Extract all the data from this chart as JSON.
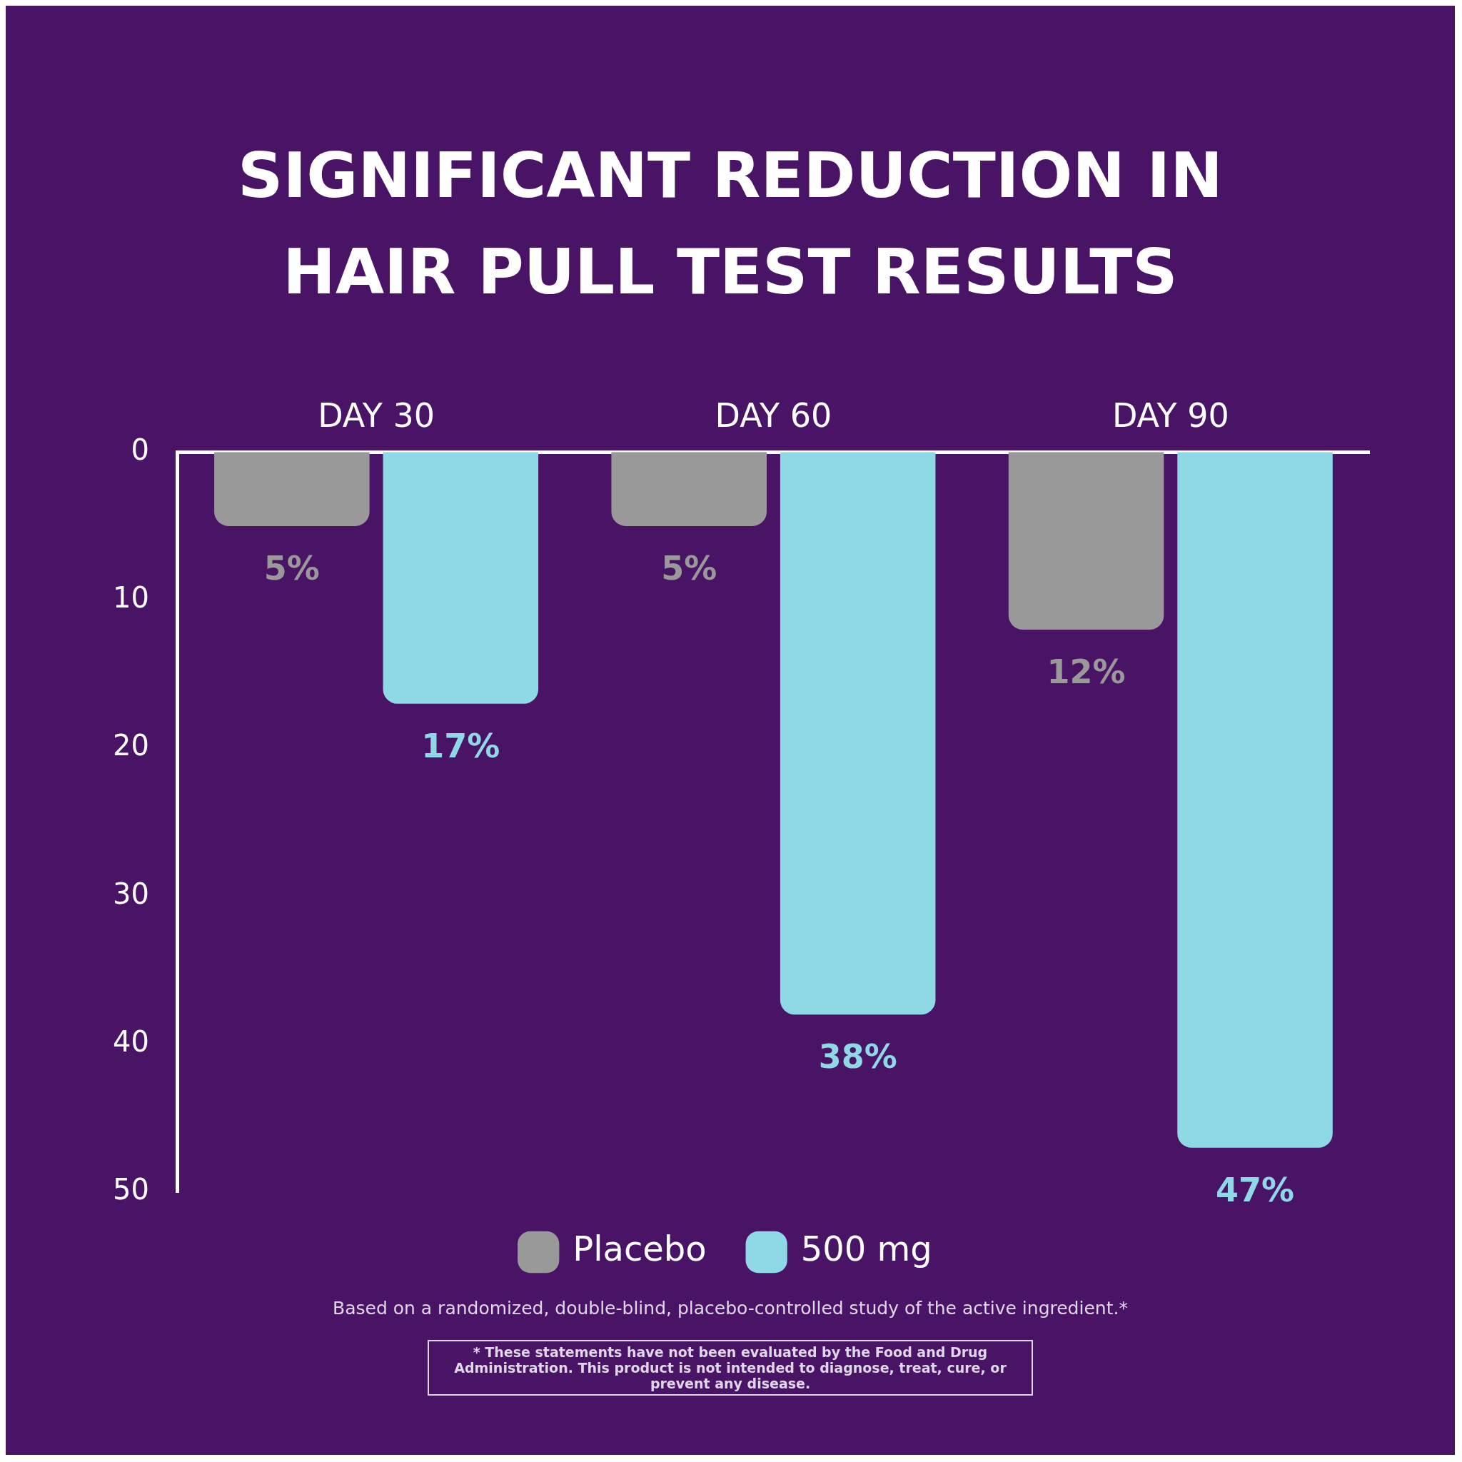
{
  "chart_data": {
    "type": "bar",
    "title": "SIGNIFICANT REDUCTION IN HAIR PULL TEST RESULTS",
    "categories": [
      "DAY 30",
      "DAY 60",
      "DAY 90"
    ],
    "series": [
      {
        "name": "Placebo",
        "color": "#999999",
        "values": [
          5,
          5,
          12
        ],
        "value_labels": [
          "5%",
          "5%",
          "12%"
        ]
      },
      {
        "name": "500 mg",
        "color": "#8fd9e6",
        "values": [
          17,
          38,
          47
        ],
        "value_labels": [
          "17%",
          "38%",
          "47%"
        ]
      }
    ],
    "ylim": [
      50,
      0
    ],
    "yticks": [
      0,
      10,
      20,
      30,
      40,
      50
    ],
    "grid": false,
    "legend": "bottom",
    "annotations": [
      "Based on a randomized, double-blind, placebo-controlled study of the active ingredient.*",
      "* These statements have not been evaluated by the Food and Drug Administration. This product is not intended to diagnose, treat, cure, or prevent any disease."
    ]
  }
}
